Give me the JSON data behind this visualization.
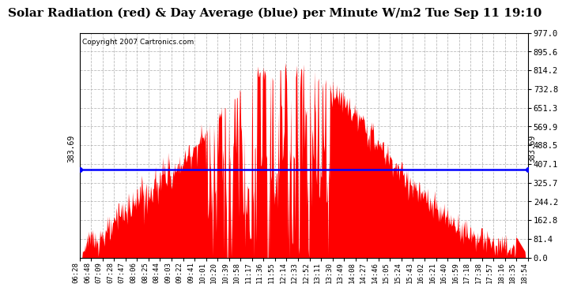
{
  "title": "Solar Radiation (red) & Day Average (blue) per Minute W/m2 Tue Sep 11 19:10",
  "copyright": "Copyright 2007 Cartronics.com",
  "avg_value": 383.69,
  "y_max": 977.0,
  "y_min": 0.0,
  "y_ticks": [
    0.0,
    81.4,
    162.8,
    244.2,
    325.7,
    407.1,
    488.5,
    569.9,
    651.3,
    732.8,
    814.2,
    895.6,
    977.0
  ],
  "x_tick_labels": [
    "06:28",
    "06:48",
    "07:09",
    "07:28",
    "07:47",
    "08:06",
    "08:25",
    "08:44",
    "09:03",
    "09:22",
    "09:41",
    "10:01",
    "10:20",
    "10:39",
    "10:58",
    "11:17",
    "11:36",
    "11:55",
    "12:14",
    "12:33",
    "12:52",
    "13:11",
    "13:30",
    "13:49",
    "14:08",
    "14:27",
    "14:46",
    "15:05",
    "15:24",
    "15:43",
    "16:02",
    "16:21",
    "16:40",
    "16:59",
    "17:18",
    "17:38",
    "17:57",
    "18:16",
    "18:35",
    "18:54"
  ],
  "bg_color": "#ffffff",
  "area_color": "#ff0000",
  "line_color": "#0000ff",
  "title_fontsize": 11,
  "grid_color": "#aaaaaa"
}
